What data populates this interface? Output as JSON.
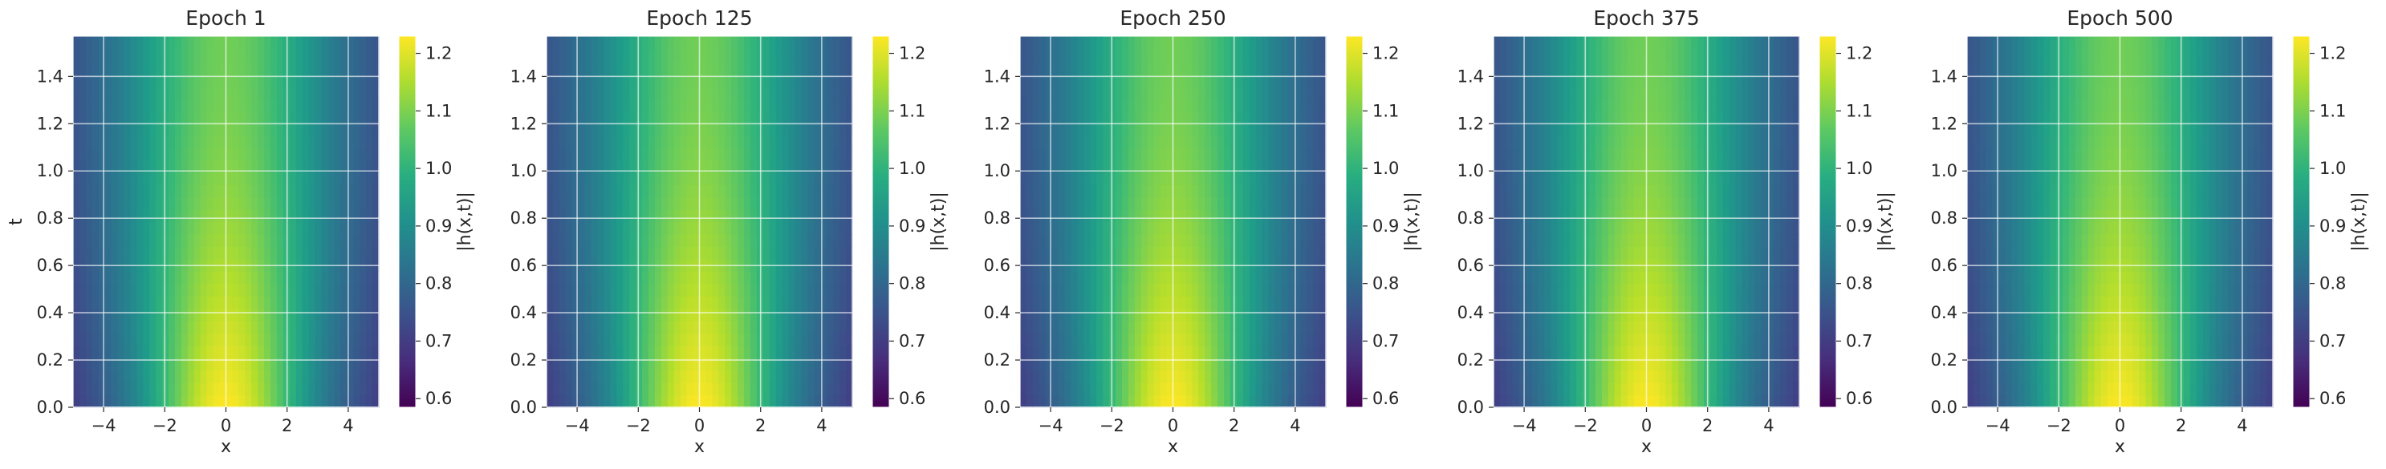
{
  "chart_data": [
    {
      "type": "heatmap",
      "title": "Epoch 1",
      "xlabel": "x",
      "ylabel": "t",
      "colorbar_label": "|h(x,t)|",
      "x_range": [
        -5,
        5
      ],
      "y_range": [
        0,
        1.5708
      ],
      "color_range": [
        0.585,
        1.23
      ],
      "x_ticks": [
        "−4",
        "−2",
        "0",
        "2",
        "4"
      ],
      "y_ticks": [
        "0.0",
        "0.2",
        "0.4",
        "0.6",
        "0.8",
        "1.0",
        "1.2",
        "1.4"
      ],
      "colorbar_ticks": [
        "0.6",
        "0.7",
        "0.8",
        "0.9",
        "1.0",
        "1.1",
        "1.2"
      ],
      "colormap": "viridis",
      "grid": true
    },
    {
      "type": "heatmap",
      "title": "Epoch 125",
      "xlabel": "x",
      "ylabel": "",
      "colorbar_label": "|h(x,t)|",
      "x_range": [
        -5,
        5
      ],
      "y_range": [
        0,
        1.5708
      ],
      "color_range": [
        0.585,
        1.23
      ],
      "x_ticks": [
        "−4",
        "−2",
        "0",
        "2",
        "4"
      ],
      "y_ticks": [
        "0.0",
        "0.2",
        "0.4",
        "0.6",
        "0.8",
        "1.0",
        "1.2",
        "1.4"
      ],
      "colorbar_ticks": [
        "0.6",
        "0.7",
        "0.8",
        "0.9",
        "1.0",
        "1.1",
        "1.2"
      ],
      "colormap": "viridis",
      "grid": true
    },
    {
      "type": "heatmap",
      "title": "Epoch 250",
      "xlabel": "x",
      "ylabel": "",
      "colorbar_label": "|h(x,t)|",
      "x_range": [
        -5,
        5
      ],
      "y_range": [
        0,
        1.5708
      ],
      "color_range": [
        0.585,
        1.23
      ],
      "x_ticks": [
        "−4",
        "−2",
        "0",
        "2",
        "4"
      ],
      "y_ticks": [
        "0.0",
        "0.2",
        "0.4",
        "0.6",
        "0.8",
        "1.0",
        "1.2",
        "1.4"
      ],
      "colorbar_ticks": [
        "0.6",
        "0.7",
        "0.8",
        "0.9",
        "1.0",
        "1.1",
        "1.2"
      ],
      "colormap": "viridis",
      "grid": true
    },
    {
      "type": "heatmap",
      "title": "Epoch 375",
      "xlabel": "x",
      "ylabel": "",
      "colorbar_label": "|h(x,t)|",
      "x_range": [
        -5,
        5
      ],
      "y_range": [
        0,
        1.5708
      ],
      "color_range": [
        0.585,
        1.23
      ],
      "x_ticks": [
        "−4",
        "−2",
        "0",
        "2",
        "4"
      ],
      "y_ticks": [
        "0.0",
        "0.2",
        "0.4",
        "0.6",
        "0.8",
        "1.0",
        "1.2",
        "1.4"
      ],
      "colorbar_ticks": [
        "0.6",
        "0.7",
        "0.8",
        "0.9",
        "1.0",
        "1.1",
        "1.2"
      ],
      "colormap": "viridis",
      "grid": true
    },
    {
      "type": "heatmap",
      "title": "Epoch 500",
      "xlabel": "x",
      "ylabel": "",
      "colorbar_label": "|h(x,t)|",
      "x_range": [
        -5,
        5
      ],
      "y_range": [
        0,
        1.5708
      ],
      "color_range": [
        0.585,
        1.23
      ],
      "x_ticks": [
        "−4",
        "−2",
        "0",
        "2",
        "4"
      ],
      "y_ticks": [
        "0.0",
        "0.2",
        "0.4",
        "0.6",
        "0.8",
        "1.0",
        "1.2",
        "1.4"
      ],
      "colorbar_ticks": [
        "0.6",
        "0.7",
        "0.8",
        "0.9",
        "1.0",
        "1.1",
        "1.2"
      ],
      "colormap": "viridis",
      "grid": true
    }
  ]
}
